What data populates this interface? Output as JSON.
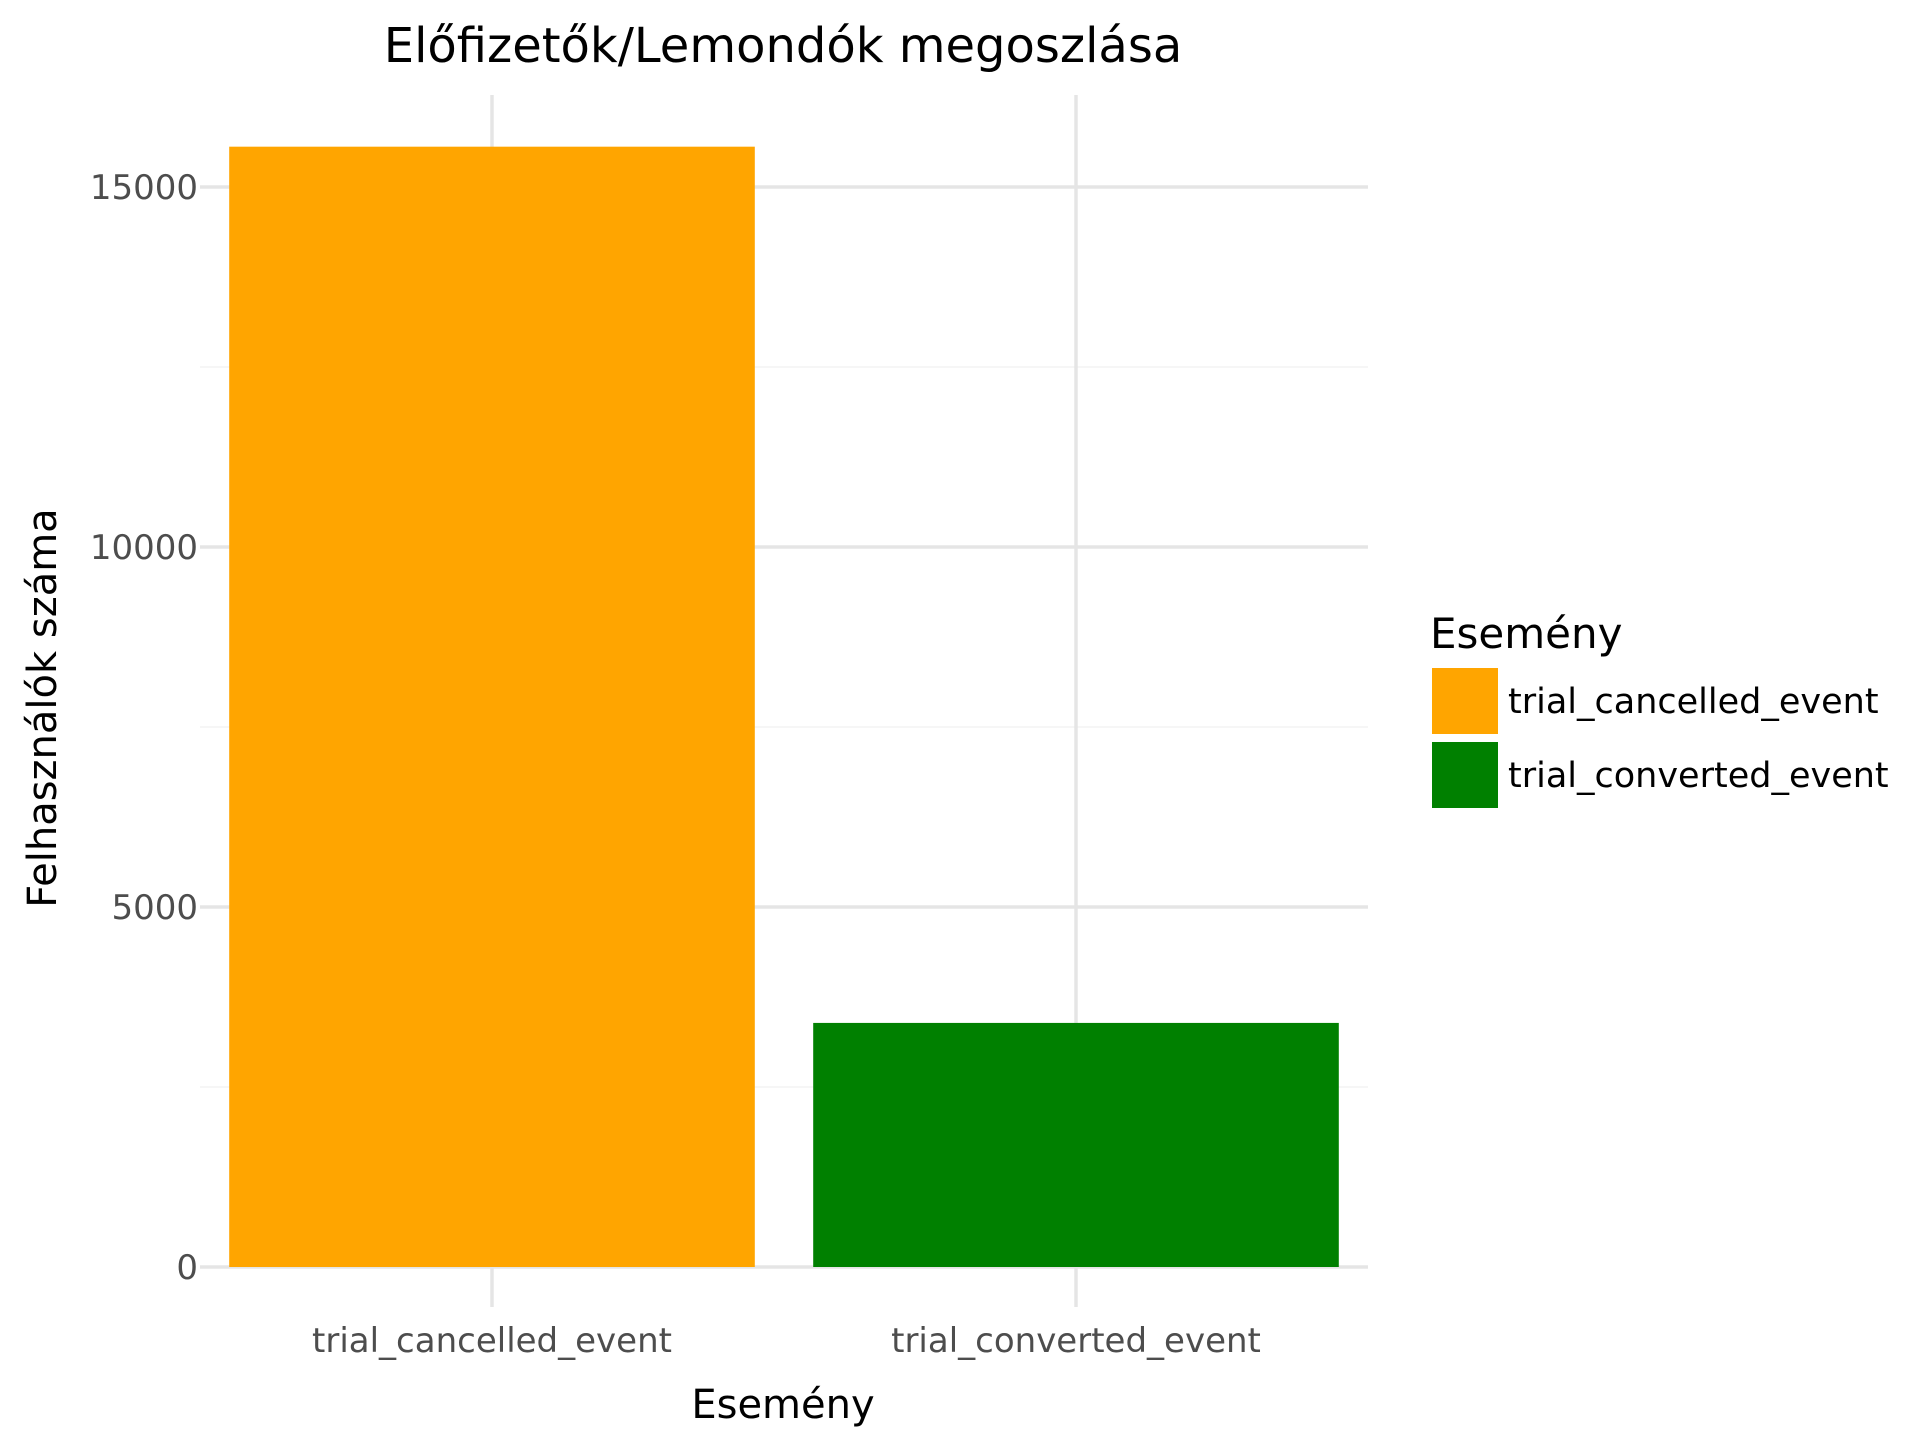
{
  "chart_data": {
    "type": "bar",
    "title": "Előfizetők/Lemondók megoszlása",
    "xlabel": "Esemény",
    "ylabel": "Felhasználók száma",
    "categories": [
      "trial_cancelled_event",
      "trial_converted_event"
    ],
    "values": [
      15560,
      3390
    ],
    "ylim": [
      0,
      16350
    ],
    "yticks": [
      0,
      5000,
      10000,
      15000
    ],
    "yticks_minor": [
      2500,
      7500,
      12500
    ],
    "grid": true,
    "legend": {
      "title": "Esemény",
      "position": "right",
      "entries": [
        "trial_cancelled_event",
        "trial_converted_event"
      ]
    },
    "colors": [
      "#FFA500",
      "#008000"
    ]
  }
}
